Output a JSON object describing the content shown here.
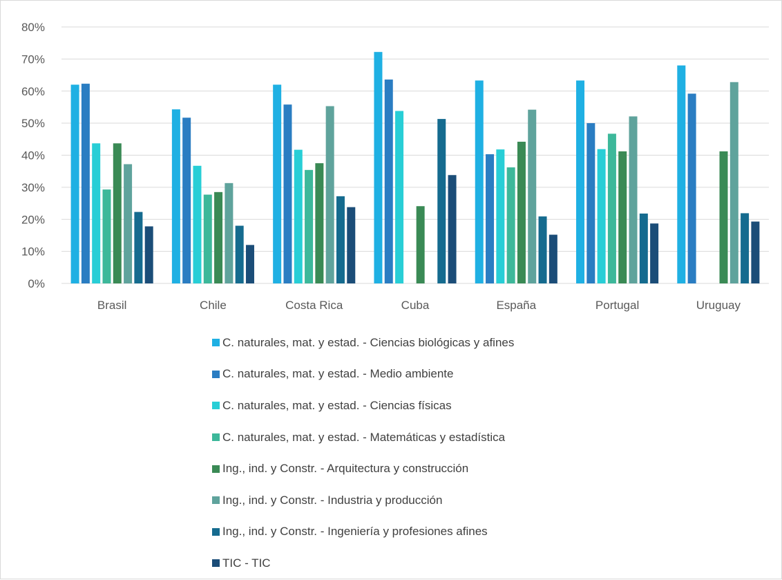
{
  "chart_data": {
    "type": "bar",
    "title": "",
    "xlabel": "",
    "ylabel": "",
    "ylim": [
      0,
      0.8
    ],
    "y_ticks": [
      "0%",
      "10%",
      "20%",
      "30%",
      "40%",
      "50%",
      "60%",
      "70%",
      "80%"
    ],
    "grid": true,
    "legend_position": "bottom",
    "categories": [
      "Brasil",
      "Chile",
      "Costa Rica",
      "Cuba",
      "España",
      "Portugal",
      "Uruguay"
    ],
    "series": [
      {
        "name": "C. naturales, mat. y estad. - Ciencias biológicas y afines",
        "color": "#1fb0e3",
        "values": [
          0.62,
          0.543,
          0.62,
          0.722,
          0.633,
          0.633,
          0.68
        ]
      },
      {
        "name": "C. naturales, mat. y estad. - Medio ambiente",
        "color": "#2a7dc2",
        "values": [
          0.623,
          0.517,
          0.558,
          0.636,
          0.403,
          0.5,
          0.592
        ]
      },
      {
        "name": "C. naturales, mat. y estad. - Ciencias físicas",
        "color": "#28ced6",
        "values": [
          0.437,
          0.367,
          0.417,
          0.538,
          0.418,
          0.419,
          null
        ]
      },
      {
        "name": "C. naturales, mat. y estad. - Matemáticas y estadística",
        "color": "#3db89a",
        "values": [
          0.293,
          0.277,
          0.354,
          null,
          0.362,
          0.467,
          null
        ]
      },
      {
        "name": "Ing., ind. y Constr. - Arquitectura y construcción",
        "color": "#3a8a55",
        "values": [
          0.437,
          0.285,
          0.375,
          0.241,
          0.442,
          0.412,
          0.412
        ]
      },
      {
        "name": "Ing., ind. y Constr. - Industria y producción",
        "color": "#5fa39c",
        "values": [
          0.372,
          0.313,
          0.553,
          null,
          0.542,
          0.521,
          0.628
        ]
      },
      {
        "name": "Ing., ind. y Constr. - Ingeniería y profesiones afines",
        "color": "#156b8f",
        "values": [
          0.223,
          0.18,
          0.272,
          0.513,
          0.209,
          0.218,
          0.219
        ]
      },
      {
        "name": "TIC - TIC",
        "color": "#1b4d78",
        "values": [
          0.178,
          0.12,
          0.238,
          0.338,
          0.152,
          0.187,
          0.193
        ]
      }
    ]
  }
}
